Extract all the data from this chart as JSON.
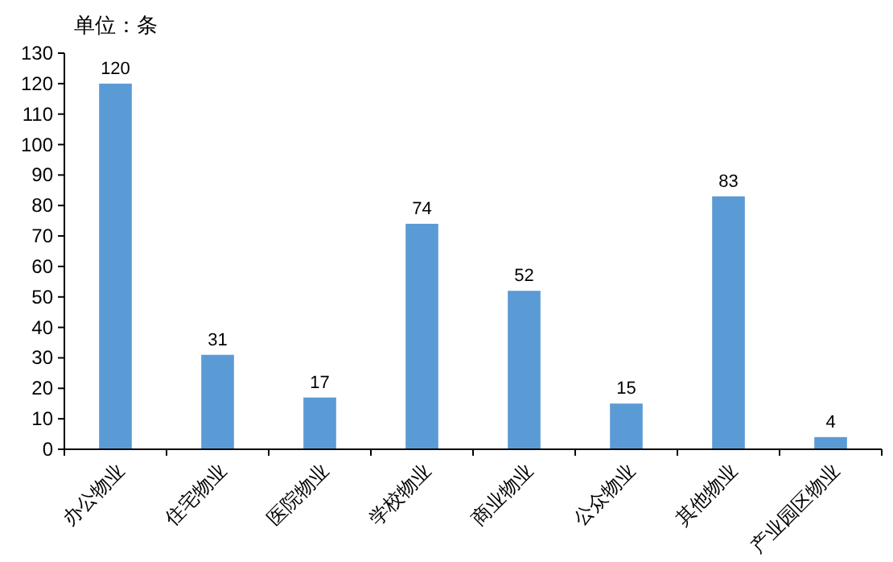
{
  "chart_data": {
    "type": "bar",
    "ylabel": "单位：条",
    "categories": [
      "办公物业",
      "住宅物业",
      "医院物业",
      "学校物业",
      "商业物业",
      "公众物业",
      "其他物业",
      "产业园区物业"
    ],
    "values": [
      120,
      31,
      17,
      74,
      52,
      15,
      83,
      4
    ],
    "color": "#5b9bd5",
    "ylim": [
      0,
      130
    ],
    "yticks": [
      0,
      10,
      20,
      30,
      40,
      50,
      60,
      70,
      80,
      90,
      100,
      110,
      120,
      130
    ],
    "data_labels": true,
    "grid": false
  }
}
